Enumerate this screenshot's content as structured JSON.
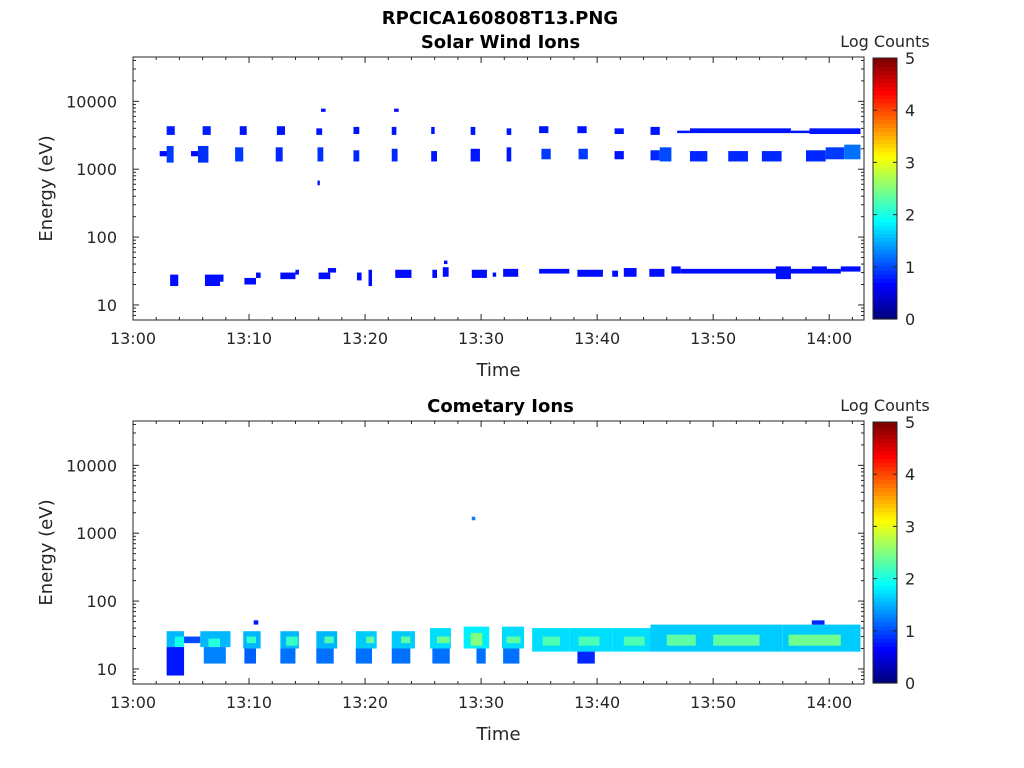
{
  "figure": {
    "filename_title": "RPCICA160808T13.PNG"
  },
  "chart_data": [
    {
      "type": "heatmap",
      "title": "Solar Wind Ions",
      "xlabel": "Time",
      "ylabel": "Energy (eV)",
      "x_axis": {
        "ticks": [
          "13:00",
          "13:10",
          "13:20",
          "13:30",
          "13:40",
          "13:50",
          "14:00"
        ],
        "range_min": [
          0,
          63
        ]
      },
      "y_axis": {
        "scale": "log",
        "range_eV": [
          6,
          45000
        ],
        "ticks": [
          "10",
          "100",
          "1000",
          "10000"
        ]
      },
      "colorbar": {
        "label": "Log Counts",
        "range": [
          0,
          5
        ],
        "ticks": [
          "0",
          "1",
          "2",
          "3",
          "4",
          "5"
        ],
        "colormap": "jet"
      },
      "cells": [
        [
          3.2,
          3.9,
          19,
          28,
          0.15
        ],
        [
          6.2,
          7.5,
          19,
          28,
          0.15
        ],
        [
          7.5,
          7.8,
          22,
          28,
          0.15
        ],
        [
          9.6,
          10.6,
          20,
          25,
          0.15
        ],
        [
          10.6,
          11,
          25,
          30,
          0.15
        ],
        [
          12.7,
          14,
          24,
          30,
          0.15
        ],
        [
          14,
          14.3,
          28,
          33,
          0.15
        ],
        [
          16,
          17,
          24,
          30,
          0.15
        ],
        [
          16.8,
          17.5,
          30,
          35,
          0.15
        ],
        [
          19.3,
          19.7,
          23,
          30,
          0.15
        ],
        [
          20.3,
          20.6,
          19,
          33,
          0.15
        ],
        [
          22.6,
          24,
          25,
          33,
          0.15
        ],
        [
          25.8,
          26.2,
          25,
          33,
          0.15
        ],
        [
          26.7,
          27.2,
          26,
          36,
          0.15
        ],
        [
          29.2,
          30.5,
          25,
          33,
          0.15
        ],
        [
          31,
          31.3,
          26,
          30,
          0.15
        ],
        [
          31.9,
          33.2,
          26,
          34,
          0.15
        ],
        [
          35,
          37.6,
          29,
          34,
          0.15
        ],
        [
          38.3,
          40.5,
          26,
          33,
          0.15
        ],
        [
          41.3,
          41.8,
          26,
          32,
          0.15
        ],
        [
          42.3,
          43.4,
          26,
          35,
          0.15
        ],
        [
          44.5,
          45.8,
          26,
          34,
          0.15
        ],
        [
          46.4,
          47.2,
          29,
          37,
          0.15
        ],
        [
          47.2,
          61,
          29,
          34,
          0.15
        ],
        [
          55.4,
          56.7,
          24,
          37,
          0.15
        ],
        [
          58.5,
          59.8,
          30,
          37,
          0.15
        ],
        [
          61,
          62.7,
          31,
          37,
          0.15
        ],
        [
          2.3,
          3.2,
          1550,
          1850,
          0.15
        ],
        [
          2.9,
          3.5,
          1250,
          2200,
          0.4
        ],
        [
          5,
          5.6,
          1550,
          1850,
          0.15
        ],
        [
          5.6,
          6.5,
          1250,
          2200,
          0.35
        ],
        [
          8.8,
          9.5,
          1300,
          2100,
          0.4
        ],
        [
          12.3,
          12.9,
          1300,
          2100,
          0.3
        ],
        [
          15.9,
          16.4,
          1300,
          2100,
          0.35
        ],
        [
          19,
          19.5,
          1300,
          1900,
          0.3
        ],
        [
          22.3,
          22.8,
          1300,
          2000,
          0.3
        ],
        [
          25.7,
          26.2,
          1300,
          1850,
          0.2
        ],
        [
          29.1,
          29.9,
          1300,
          2000,
          0.2
        ],
        [
          32.2,
          32.6,
          1300,
          2100,
          0.2
        ],
        [
          35.2,
          36,
          1400,
          2000,
          0.4
        ],
        [
          38.4,
          39.2,
          1400,
          2000,
          0.4
        ],
        [
          41.5,
          42.3,
          1400,
          1850,
          0.2
        ],
        [
          44.6,
          45.4,
          1350,
          1900,
          0.3
        ],
        [
          45.4,
          46.4,
          1300,
          2100,
          0.5
        ],
        [
          48,
          49.5,
          1300,
          1850,
          0.3
        ],
        [
          51.3,
          53,
          1300,
          1850,
          0.3
        ],
        [
          54.2,
          55.9,
          1300,
          1850,
          0.3
        ],
        [
          58,
          59.7,
          1300,
          1900,
          0.3
        ],
        [
          59.7,
          61.3,
          1400,
          2100,
          0.4
        ],
        [
          61.3,
          62.7,
          1400,
          2300,
          0.7
        ],
        [
          2.9,
          3.6,
          3200,
          4300,
          0.25
        ],
        [
          6,
          6.7,
          3200,
          4300,
          0.25
        ],
        [
          9.2,
          9.8,
          3200,
          4300,
          0.2
        ],
        [
          12.4,
          13.1,
          3200,
          4300,
          0.2
        ],
        [
          15.8,
          16.3,
          3200,
          4000,
          0.2
        ],
        [
          19,
          19.5,
          3300,
          4200,
          0.2
        ],
        [
          22.3,
          22.7,
          3200,
          4200,
          0.2
        ],
        [
          25.7,
          26,
          3300,
          4200,
          0.2
        ],
        [
          29.1,
          29.5,
          3200,
          4200,
          0.2
        ],
        [
          32.2,
          32.6,
          3200,
          4000,
          0.2
        ],
        [
          35,
          35.8,
          3400,
          4300,
          0.2
        ],
        [
          38.3,
          39.1,
          3400,
          4300,
          0.2
        ],
        [
          41.5,
          42.3,
          3300,
          4000,
          0.2
        ],
        [
          44.6,
          45.4,
          3200,
          4200,
          0.2
        ],
        [
          46.9,
          48,
          3400,
          3700,
          0.2
        ],
        [
          48,
          56.7,
          3400,
          4000,
          0.2
        ],
        [
          56.7,
          58.3,
          3400,
          3700,
          0.2
        ],
        [
          58.3,
          62.7,
          3300,
          4000,
          0.2
        ],
        [
          16.2,
          16.6,
          7000,
          7800,
          0.15
        ],
        [
          22.5,
          22.9,
          7000,
          7800,
          0.15
        ],
        [
          15.9,
          16.1,
          580,
          680,
          0.15
        ],
        [
          26.8,
          27.1,
          40,
          45,
          0.15
        ]
      ]
    },
    {
      "type": "heatmap",
      "title": "Cometary Ions",
      "xlabel": "Time",
      "ylabel": "Energy (eV)",
      "x_axis": {
        "ticks": [
          "13:00",
          "13:10",
          "13:20",
          "13:30",
          "13:40",
          "13:50",
          "14:00"
        ],
        "range_min": [
          0,
          63
        ]
      },
      "y_axis": {
        "scale": "log",
        "range_eV": [
          6,
          45000
        ],
        "ticks": [
          "10",
          "100",
          "1000",
          "10000"
        ]
      },
      "colorbar": {
        "label": "Log Counts",
        "range": [
          0,
          5
        ],
        "ticks": [
          "0",
          "1",
          "2",
          "3",
          "4",
          "5"
        ],
        "colormap": "jet"
      },
      "cells": [
        [
          2.9,
          4.4,
          21,
          36,
          1.1
        ],
        [
          3.6,
          4.4,
          21,
          30,
          1.6
        ],
        [
          2.9,
          4.4,
          8,
          21,
          0.2
        ],
        [
          4.4,
          5.8,
          24,
          30,
          0.5
        ],
        [
          5.8,
          8.4,
          21,
          36,
          1.1
        ],
        [
          6.5,
          7.5,
          21,
          28,
          1.7
        ],
        [
          6.1,
          8,
          12,
          21,
          0.8
        ],
        [
          9.5,
          11,
          20,
          36,
          1.1
        ],
        [
          9.8,
          10.6,
          24,
          30,
          1.8
        ],
        [
          9.6,
          10.6,
          12,
          20,
          0.6
        ],
        [
          10.4,
          10.8,
          45,
          52,
          0.2
        ],
        [
          12.7,
          14.3,
          20,
          36,
          1.1
        ],
        [
          13.2,
          14.2,
          22,
          30,
          1.8
        ],
        [
          12.7,
          14,
          12,
          20,
          0.7
        ],
        [
          15.8,
          17.6,
          20,
          36,
          1.1
        ],
        [
          16.5,
          17.3,
          24,
          30,
          1.9
        ],
        [
          15.8,
          17.3,
          12,
          20,
          0.7
        ],
        [
          19.2,
          21,
          20,
          36,
          1.2
        ],
        [
          20.1,
          20.8,
          24,
          30,
          2.0
        ],
        [
          19.2,
          20.6,
          12,
          20,
          0.7
        ],
        [
          22.3,
          24.3,
          20,
          36,
          1.2
        ],
        [
          23.1,
          23.9,
          24,
          30,
          2.0
        ],
        [
          22.3,
          23.9,
          12,
          20,
          0.7
        ],
        [
          25.6,
          27.4,
          20,
          40,
          1.3
        ],
        [
          26.2,
          27.3,
          24,
          30,
          2.1
        ],
        [
          25.8,
          27.3,
          12,
          20,
          0.7
        ],
        [
          28.5,
          30.7,
          20,
          42,
          1.4
        ],
        [
          29.1,
          30.1,
          22,
          34,
          2.2
        ],
        [
          29.6,
          30.4,
          12,
          20,
          0.7
        ],
        [
          31.8,
          33.7,
          20,
          42,
          1.3
        ],
        [
          32.2,
          33.4,
          24,
          30,
          2.0
        ],
        [
          31.9,
          33.3,
          12,
          20,
          0.7
        ],
        [
          34.4,
          37.6,
          18,
          40,
          1.3
        ],
        [
          35.3,
          36.8,
          22,
          30,
          1.9
        ],
        [
          37.6,
          41.3,
          18,
          40,
          1.3
        ],
        [
          38.4,
          40.2,
          22,
          30,
          1.9
        ],
        [
          38.3,
          39.8,
          12,
          18,
          0.3
        ],
        [
          41.3,
          44.6,
          18,
          40,
          1.3
        ],
        [
          42.3,
          44.1,
          22,
          30,
          1.9
        ],
        [
          44.6,
          49.6,
          18,
          45,
          1.2
        ],
        [
          46,
          48.5,
          22,
          32,
          2.0
        ],
        [
          49.6,
          56,
          18,
          45,
          1.2
        ],
        [
          50,
          54,
          22,
          32,
          2.0
        ],
        [
          56,
          62.7,
          18,
          45,
          1.2
        ],
        [
          56.5,
          61,
          22,
          32,
          2.1
        ],
        [
          58.5,
          59.6,
          45,
          52,
          0.3
        ],
        [
          29.2,
          29.5,
          1550,
          1750,
          0.8
        ]
      ]
    }
  ]
}
